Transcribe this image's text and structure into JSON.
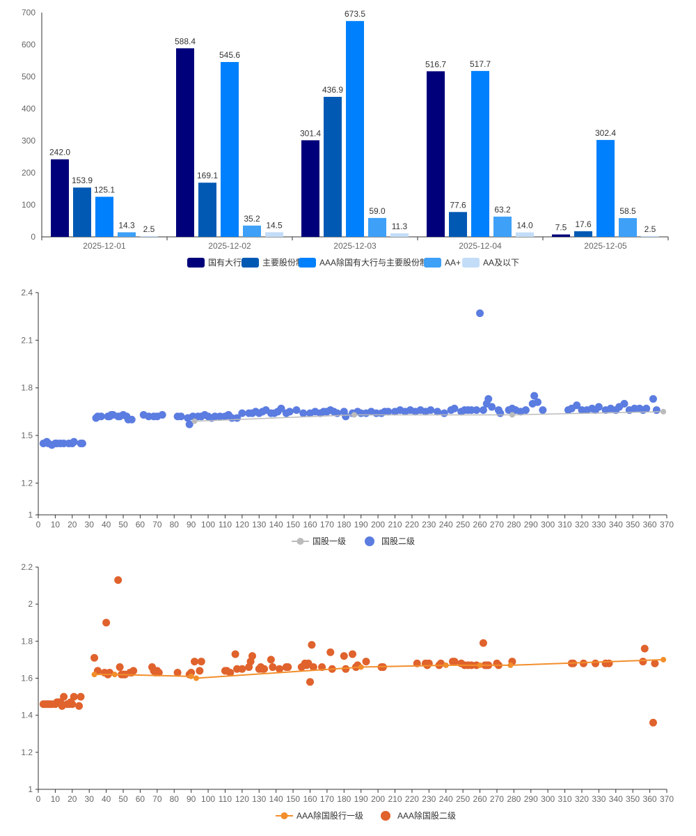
{
  "chart_data": [
    {
      "type": "bar",
      "categories": [
        "2025-12-01",
        "2025-12-02",
        "2025-12-03",
        "2025-12-04",
        "2025-12-05"
      ],
      "ylim": [
        0,
        700
      ],
      "yticks": [
        0,
        100,
        200,
        300,
        400,
        500,
        600,
        700
      ],
      "ytick_labels": [
        "0",
        "100",
        "200",
        "300",
        "400",
        "500",
        "600",
        "700"
      ],
      "legend_position": "bottom-center",
      "series": [
        {
          "name": "国有大行",
          "color": "#00007a",
          "values": [
            242.0,
            588.4,
            301.4,
            516.7,
            7.5
          ],
          "labels": [
            "242.0",
            "588.4",
            "301.4",
            "516.7",
            "7.5"
          ]
        },
        {
          "name": "主要股份制",
          "color": "#0259b4",
          "values": [
            153.9,
            169.1,
            436.9,
            77.6,
            17.6
          ],
          "labels": [
            "153.9",
            "169.1",
            "436.9",
            "77.6",
            "17.6"
          ]
        },
        {
          "name": "AAA除国有大行与主要股份制",
          "color": "#0080fc",
          "values": [
            125.1,
            545.6,
            673.5,
            517.7,
            302.4
          ],
          "labels": [
            "125.1",
            "545.6",
            "673.5",
            "517.7",
            "302.4"
          ]
        },
        {
          "name": "AA+",
          "color": "#3ea0f7",
          "values": [
            14.3,
            35.2,
            59.0,
            63.2,
            58.5
          ],
          "labels": [
            "14.3",
            "35.2",
            "59.0",
            "63.2",
            "58.5"
          ]
        },
        {
          "name": "AA及以下",
          "color": "#c3ddf8",
          "values": [
            2.5,
            14.5,
            11.3,
            14.0,
            2.5
          ],
          "labels": [
            "2.5",
            "14.5",
            "11.3",
            "14.0",
            "2.5"
          ]
        }
      ]
    },
    {
      "type": "scatter",
      "xlim": [
        0,
        370
      ],
      "ylim": [
        1,
        2.4
      ],
      "xticks": [
        0,
        10,
        20,
        30,
        40,
        50,
        60,
        70,
        80,
        90,
        100,
        110,
        120,
        130,
        140,
        150,
        160,
        170,
        180,
        190,
        200,
        210,
        220,
        230,
        240,
        250,
        260,
        270,
        280,
        290,
        300,
        310,
        320,
        330,
        340,
        350,
        360,
        370
      ],
      "xtick_labels": [
        "0",
        "10",
        "20",
        "30",
        "40",
        "50",
        "60",
        "70",
        "80",
        "90",
        "100",
        "110",
        "120",
        "130",
        "140",
        "150",
        "160",
        "170",
        "180",
        "190",
        "200",
        "210",
        "220",
        "230",
        "240",
        "250",
        "260",
        "270",
        "280",
        "290",
        "300",
        "310",
        "320",
        "330",
        "340",
        "350",
        "360",
        "370"
      ],
      "yticks": [
        1,
        1.2,
        1.5,
        1.8,
        2.1,
        2.4
      ],
      "ytick_labels": [
        "1",
        "1.2",
        "1.5",
        "1.8",
        "2.1",
        "2.4"
      ],
      "legend_position": "bottom-center",
      "line_series": {
        "name": "国股一级",
        "color": "#bbbbbb",
        "x": [
          92,
          186,
          279,
          368
        ],
        "y": [
          1.59,
          1.63,
          1.63,
          1.65
        ]
      },
      "scatter_series": {
        "name": "国股二级",
        "color": "#5b7ce0",
        "x": [
          3,
          5,
          6,
          8,
          10,
          11,
          13,
          15,
          18,
          20,
          21,
          25,
          26,
          34,
          35,
          37,
          41,
          42,
          43,
          44,
          47,
          48,
          50,
          52,
          53,
          55,
          62,
          65,
          68,
          70,
          73,
          82,
          84,
          88,
          89,
          91,
          94,
          96,
          98,
          100,
          102,
          104,
          107,
          110,
          112,
          114,
          117,
          120,
          124,
          126,
          128,
          130,
          132,
          134,
          137,
          139,
          141,
          143,
          146,
          148,
          152,
          156,
          160,
          163,
          166,
          168,
          170,
          172,
          174,
          176,
          180,
          181,
          185,
          188,
          190,
          193,
          196,
          199,
          202,
          204,
          206,
          210,
          213,
          216,
          219,
          222,
          225,
          228,
          231,
          235,
          239,
          243,
          245,
          249,
          251,
          253,
          255,
          258,
          260,
          262,
          264,
          265,
          267,
          271,
          272,
          277,
          279,
          281,
          284,
          287,
          291,
          292,
          294,
          297,
          312,
          314,
          317,
          320,
          323,
          326,
          328,
          330,
          334,
          337,
          340,
          342,
          345,
          348,
          351,
          354,
          356,
          358,
          362,
          364
        ],
        "y": [
          1.45,
          1.46,
          1.45,
          1.44,
          1.45,
          1.45,
          1.45,
          1.45,
          1.45,
          1.45,
          1.46,
          1.45,
          1.45,
          1.61,
          1.62,
          1.62,
          1.62,
          1.62,
          1.63,
          1.63,
          1.62,
          1.62,
          1.63,
          1.62,
          1.6,
          1.6,
          1.63,
          1.62,
          1.62,
          1.62,
          1.63,
          1.62,
          1.62,
          1.61,
          1.57,
          1.62,
          1.62,
          1.62,
          1.63,
          1.62,
          1.61,
          1.62,
          1.62,
          1.62,
          1.63,
          1.61,
          1.61,
          1.64,
          1.64,
          1.64,
          1.65,
          1.64,
          1.65,
          1.66,
          1.64,
          1.64,
          1.65,
          1.67,
          1.64,
          1.65,
          1.66,
          1.64,
          1.64,
          1.65,
          1.64,
          1.65,
          1.65,
          1.66,
          1.65,
          1.64,
          1.65,
          1.62,
          1.64,
          1.65,
          1.64,
          1.64,
          1.65,
          1.64,
          1.64,
          1.65,
          1.65,
          1.65,
          1.66,
          1.65,
          1.66,
          1.65,
          1.66,
          1.65,
          1.66,
          1.65,
          1.64,
          1.66,
          1.67,
          1.65,
          1.66,
          1.66,
          1.66,
          1.66,
          2.27,
          1.66,
          1.7,
          1.73,
          1.68,
          1.66,
          1.64,
          1.66,
          1.67,
          1.66,
          1.65,
          1.66,
          1.7,
          1.75,
          1.71,
          1.66,
          1.66,
          1.67,
          1.69,
          1.66,
          1.66,
          1.67,
          1.66,
          1.68,
          1.66,
          1.67,
          1.66,
          1.68,
          1.7,
          1.66,
          1.67,
          1.67,
          1.66,
          1.67,
          1.73,
          1.66
        ]
      }
    },
    {
      "type": "scatter",
      "xlim": [
        0,
        370
      ],
      "ylim": [
        1,
        2.2
      ],
      "xticks": [
        0,
        10,
        20,
        30,
        40,
        50,
        60,
        70,
        80,
        90,
        100,
        110,
        120,
        130,
        140,
        150,
        160,
        170,
        180,
        190,
        200,
        210,
        220,
        230,
        240,
        250,
        260,
        270,
        280,
        290,
        300,
        310,
        320,
        330,
        340,
        350,
        360,
        370
      ],
      "xtick_labels": [
        "0",
        "10",
        "20",
        "30",
        "40",
        "50",
        "60",
        "70",
        "80",
        "90",
        "100",
        "110",
        "120",
        "130",
        "140",
        "150",
        "160",
        "170",
        "180",
        "190",
        "200",
        "210",
        "220",
        "230",
        "240",
        "250",
        "260",
        "270",
        "280",
        "290",
        "300",
        "310",
        "320",
        "330",
        "340",
        "350",
        "360",
        "370"
      ],
      "yticks": [
        1,
        1.2,
        1.4,
        1.6,
        1.8,
        2,
        2.2
      ],
      "ytick_labels": [
        "1",
        "1.2",
        "1.4",
        "1.6",
        "1.8",
        "2",
        "2.2"
      ],
      "legend_position": "bottom-center",
      "line_series": {
        "name": "AAA除国股行一级",
        "color": "#f28e2b",
        "x": [
          33,
          45,
          90,
          93,
          190,
          240,
          260,
          278,
          368
        ],
        "y": [
          1.62,
          1.62,
          1.61,
          1.6,
          1.66,
          1.67,
          1.67,
          1.67,
          1.7
        ]
      },
      "scatter_series": {
        "name": "AAA除国股二级",
        "color": "#e0622c",
        "x": [
          3,
          4,
          5,
          6,
          7,
          8,
          10,
          11,
          12,
          13,
          14,
          15,
          17,
          18,
          19,
          20,
          21,
          24,
          25,
          33,
          35,
          39,
          40,
          41,
          42,
          47,
          48,
          49,
          50,
          51,
          54,
          55,
          56,
          67,
          68,
          69,
          70,
          71,
          82,
          89,
          90,
          92,
          95,
          96,
          110,
          111,
          113,
          116,
          117,
          120,
          124,
          125,
          126,
          130,
          131,
          132,
          133,
          137,
          138,
          142,
          146,
          147,
          155,
          157,
          158,
          159,
          160,
          161,
          162,
          167,
          172,
          173,
          180,
          181,
          185,
          187,
          188,
          193,
          202,
          203,
          223,
          228,
          229,
          230,
          236,
          237,
          244,
          245,
          249,
          251,
          253,
          255,
          258,
          262,
          263,
          264,
          265,
          270,
          271,
          279,
          314,
          315,
          321,
          328,
          334,
          336,
          356,
          357,
          362,
          363
        ],
        "y": [
          1.46,
          1.46,
          1.46,
          1.46,
          1.46,
          1.46,
          1.46,
          1.47,
          1.47,
          1.47,
          1.45,
          1.5,
          1.46,
          1.46,
          1.47,
          1.46,
          1.5,
          1.45,
          1.5,
          1.71,
          1.64,
          1.63,
          1.9,
          1.62,
          1.63,
          2.13,
          1.66,
          1.62,
          1.62,
          1.62,
          1.63,
          1.63,
          1.64,
          1.66,
          1.64,
          1.63,
          1.64,
          1.63,
          1.63,
          1.62,
          1.63,
          1.69,
          1.64,
          1.69,
          1.64,
          1.64,
          1.63,
          1.73,
          1.65,
          1.65,
          1.66,
          1.69,
          1.72,
          1.65,
          1.66,
          1.65,
          1.65,
          1.7,
          1.66,
          1.65,
          1.66,
          1.66,
          1.66,
          1.68,
          1.67,
          1.68,
          1.58,
          1.78,
          1.66,
          1.66,
          1.74,
          1.65,
          1.72,
          1.65,
          1.73,
          1.66,
          1.67,
          1.69,
          1.66,
          1.66,
          1.68,
          1.68,
          1.67,
          1.68,
          1.67,
          1.68,
          1.69,
          1.69,
          1.68,
          1.67,
          1.67,
          1.67,
          1.67,
          1.79,
          1.67,
          1.67,
          1.67,
          1.68,
          1.67,
          1.69,
          1.68,
          1.68,
          1.68,
          1.68,
          1.68,
          1.68,
          1.69,
          1.76,
          1.36,
          1.68
        ]
      }
    }
  ]
}
